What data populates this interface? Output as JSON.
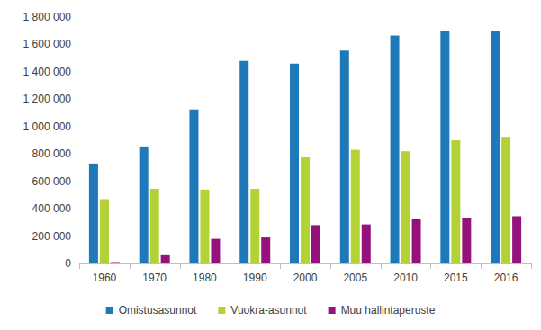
{
  "chart_data": {
    "type": "bar",
    "categories": [
      "1960",
      "1970",
      "1980",
      "1990",
      "2000",
      "2005",
      "2010",
      "2015",
      "2016"
    ],
    "series": [
      {
        "name": "Omistusasunnot",
        "color": "#1f78b8",
        "values": [
          730000,
          855000,
          1125000,
          1480000,
          1460000,
          1555000,
          1665000,
          1700000,
          1700000
        ]
      },
      {
        "name": "Vuokra-asunnot",
        "color": "#b2d235",
        "values": [
          470000,
          545000,
          540000,
          545000,
          775000,
          830000,
          820000,
          900000,
          925000
        ]
      },
      {
        "name": "Muu hallintaperuste",
        "color": "#95127d",
        "values": [
          10000,
          60000,
          180000,
          190000,
          280000,
          285000,
          325000,
          335000,
          345000
        ]
      }
    ],
    "ylim": [
      0,
      1800000
    ],
    "yticks": [
      0,
      {
        "value": 200000,
        "label": "200 000"
      },
      {
        "value": 400000,
        "label": "400 000"
      },
      {
        "value": 600000,
        "label": "600 000"
      },
      {
        "value": 800000,
        "label": "800 000"
      },
      {
        "value": 1000000,
        "label": "1 000 000"
      },
      {
        "value": 1200000,
        "label": "1 200 000"
      },
      {
        "value": 1400000,
        "label": "1 400 000"
      },
      {
        "value": 1600000,
        "label": "1 600 000"
      },
      {
        "value": 1800000,
        "label": "1 800 000"
      }
    ],
    "grid": false,
    "legend": "bottom"
  }
}
